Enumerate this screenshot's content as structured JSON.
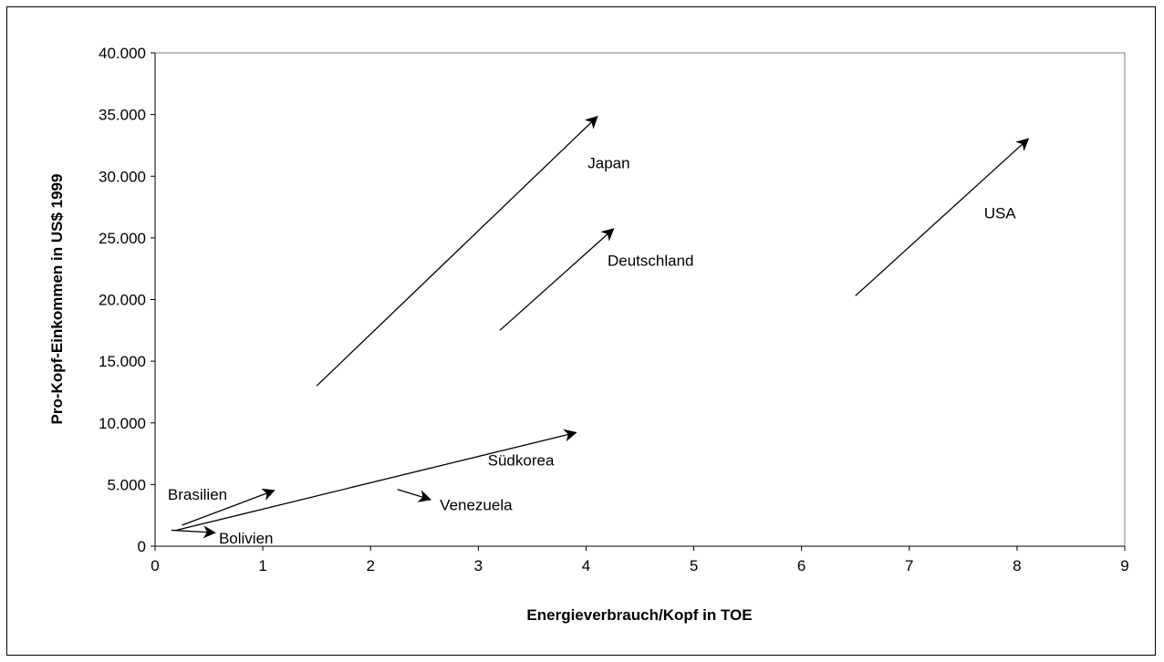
{
  "chart_data": {
    "type": "vector-arrows",
    "xlabel": "Energieverbrauch/Kopf in TOE",
    "ylabel": "Pro-Kopf-Einkommen in US$ 1999",
    "xlim": [
      0,
      9
    ],
    "ylim": [
      0,
      40000
    ],
    "x_ticks": [
      "0",
      "1",
      "2",
      "3",
      "4",
      "5",
      "6",
      "7",
      "8",
      "9"
    ],
    "y_ticks": [
      "0",
      "5.000",
      "10.000",
      "15.000",
      "20.000",
      "25.000",
      "30.000",
      "35.000",
      "40.000"
    ],
    "grid": false,
    "legend": "none",
    "series": [
      {
        "name": "Japan",
        "from": [
          1.5,
          13000
        ],
        "to": [
          4.1,
          34800
        ]
      },
      {
        "name": "USA",
        "from": [
          6.5,
          20300
        ],
        "to": [
          8.1,
          33000
        ]
      },
      {
        "name": "Deutschland",
        "from": [
          3.2,
          17500
        ],
        "to": [
          4.25,
          25700
        ]
      },
      {
        "name": "Südkorea",
        "from": [
          0.2,
          1300
        ],
        "to": [
          3.9,
          9200
        ]
      },
      {
        "name": "Brasilien",
        "from": [
          0.25,
          1700
        ],
        "to": [
          1.1,
          4500
        ]
      },
      {
        "name": "Venezuela",
        "from": [
          2.25,
          4600
        ],
        "to": [
          2.55,
          3800
        ]
      },
      {
        "name": "Bolivien",
        "from": [
          0.15,
          1300
        ],
        "to": [
          0.55,
          1100
        ]
      }
    ],
    "colors": {
      "line": "#000000",
      "background": "#ffffff"
    }
  }
}
